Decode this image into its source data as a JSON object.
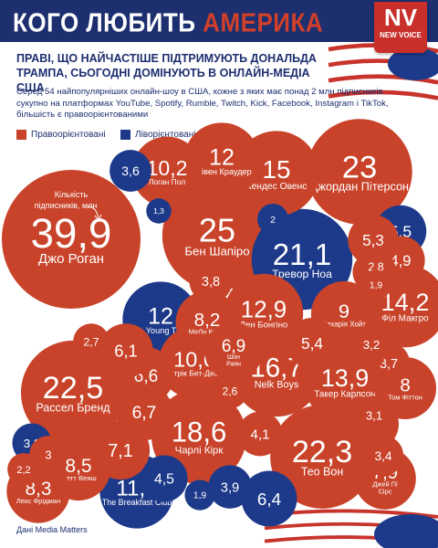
{
  "header": {
    "title_part1": "КОГО ЛЮБИТЬ",
    "title_part2": "АМЕРИКА",
    "logo_text": "NV",
    "logo_subtext": "NEW VOICE"
  },
  "subtitle": "ПРАВІ, ЩО НАЙЧАСТІШЕ ПІДТРИМУЮТЬ ДОНАЛЬДА ТРАМПА, СЬОГОДНІ ДОМІНУЮТЬ В ОНЛАЙН-МЕДІА США",
  "description": "Серед 54 найпопулярніших онлайн-шоу в США, кожне з яких має понад 2 млн підписників сукупно на платформах YouTube, Spotify, Rumble, Twitch, Kick, Facebook, Instagram і TikTok, більшість є правоорієнтованими",
  "legend": {
    "right": "Правоорієнтовані",
    "left": "Ліворієнтовані"
  },
  "colors": {
    "right": "#c8432a",
    "left": "#1d3a8a",
    "header": "#1d2f6f",
    "text": "#1d2f6f"
  },
  "annotation": "Кількість підписників, млн",
  "source": "Дані Media Matters",
  "chart_data": {
    "type": "bubble",
    "unit": "млн підписників",
    "bubbles": [
      {
        "value": 39.9,
        "label": "Джо Роган",
        "value_text": "39,9",
        "group": "right"
      },
      {
        "value": 25,
        "label": "Бен Шапіро",
        "value_text": "25",
        "group": "right"
      },
      {
        "value": 23,
        "label": "Джордан Пітерсон",
        "value_text": "23",
        "group": "right"
      },
      {
        "value": 22.5,
        "label": "Рассел Бренд",
        "value_text": "22,5",
        "group": "right"
      },
      {
        "value": 22.3,
        "label": "Тео Вон",
        "value_text": "22,3",
        "group": "right"
      },
      {
        "value": 21.1,
        "label": "Тревор Ноа",
        "value_text": "21,1",
        "group": "left"
      },
      {
        "value": 18.6,
        "label": "Чарлі Кірк",
        "value_text": "18,6",
        "group": "right"
      },
      {
        "value": 16.7,
        "label": "Nelk Boys",
        "value_text": "16,7",
        "group": "right"
      },
      {
        "value": 15,
        "label": "Кендес Овенс",
        "value_text": "15",
        "group": "right"
      },
      {
        "value": 14.2,
        "label": "Філ Макгро",
        "value_text": "14,2",
        "group": "right"
      },
      {
        "value": 13.9,
        "label": "Такер Карлсон",
        "value_text": "13,9",
        "group": "right"
      },
      {
        "value": 12.9,
        "label": "Ден Бонгіно",
        "value_text": "12,9",
        "group": "right"
      },
      {
        "value": 12,
        "label": "Стівен Краудер",
        "value_text": "12",
        "group": "right"
      },
      {
        "value": 12,
        "label": "The Young Turks",
        "value_text": "12",
        "group": "left"
      },
      {
        "value": 11.4,
        "label": "The Breakfast Club",
        "value_text": "11,4",
        "group": "left"
      },
      {
        "value": 10.6,
        "label": "Патрік Бет-Девід",
        "value_text": "10,6",
        "group": "right"
      },
      {
        "value": 10.2,
        "label": "Логан Пол",
        "value_text": "10,2",
        "group": "right"
      },
      {
        "value": 9,
        "label": "Захарія Хойт",
        "value_text": "9",
        "group": "right"
      },
      {
        "value": 8.5,
        "label": "Метт Веяш",
        "value_text": "8,5",
        "group": "right"
      },
      {
        "value": 8.3,
        "label": "Лекс Фрідман",
        "value_text": "8,3",
        "group": "right"
      },
      {
        "value": 8.2,
        "label": "Меґін Келлі",
        "value_text": "8,2",
        "group": "right"
      },
      {
        "value": 8,
        "label": "Том Фіттон",
        "value_text": "8",
        "group": "right"
      },
      {
        "value": 7.9,
        "label": "Джей Пі Сірс",
        "value_text": "7,9",
        "group": "right"
      },
      {
        "value": 6.9,
        "label": "Шон Раян",
        "value_text": "6,9",
        "group": "right"
      },
      {
        "value": 7.1,
        "label": "",
        "value_text": "7,1",
        "group": "right"
      },
      {
        "value": 6.7,
        "label": "",
        "value_text": "6,7",
        "group": "right"
      },
      {
        "value": 6.6,
        "label": "",
        "value_text": "6,6",
        "group": "right"
      },
      {
        "value": 6.4,
        "label": "",
        "value_text": "6,4",
        "group": "left"
      },
      {
        "value": 6.2,
        "label": "",
        "value_text": "6,2",
        "group": "right"
      },
      {
        "value": 6.1,
        "label": "",
        "value_text": "6,1",
        "group": "right"
      },
      {
        "value": 5.5,
        "label": "",
        "value_text": "5,5",
        "group": "left"
      },
      {
        "value": 5.4,
        "label": "",
        "value_text": "5,4",
        "group": "right"
      },
      {
        "value": 5.3,
        "label": "",
        "value_text": "5,3",
        "group": "right"
      },
      {
        "value": 4.9,
        "label": "",
        "value_text": "4,9",
        "group": "right"
      },
      {
        "value": 4.5,
        "label": "",
        "value_text": "4,5",
        "group": "left"
      },
      {
        "value": 4.1,
        "label": "",
        "value_text": "4,1",
        "group": "right"
      },
      {
        "value": 3.9,
        "label": "",
        "value_text": "3,9",
        "group": "left"
      },
      {
        "value": 3.8,
        "label": "",
        "value_text": "3,8",
        "group": "right"
      },
      {
        "value": 3.7,
        "label": "",
        "value_text": "3,7",
        "group": "right"
      },
      {
        "value": 3.6,
        "label": "",
        "value_text": "3,6",
        "group": "left"
      },
      {
        "value": 3.5,
        "label": "",
        "value_text": "3,5",
        "group": "right"
      },
      {
        "value": 3.4,
        "label": "",
        "value_text": "3,4",
        "group": "right"
      },
      {
        "value": 3.2,
        "label": "",
        "value_text": "3,2",
        "group": "right"
      },
      {
        "value": 3.2,
        "label": "",
        "value_text": "3,2",
        "group": "left"
      },
      {
        "value": 3.1,
        "label": "",
        "value_text": "3,1",
        "group": "right"
      },
      {
        "value": 3,
        "label": "",
        "value_text": "3",
        "group": "right"
      },
      {
        "value": 2.8,
        "label": "",
        "value_text": "2,8",
        "group": "right"
      },
      {
        "value": 2.7,
        "label": "",
        "value_text": "2,7",
        "group": "right"
      },
      {
        "value": 2.6,
        "label": "",
        "value_text": "2,6",
        "group": "right"
      },
      {
        "value": 2.2,
        "label": "",
        "value_text": "2,2",
        "group": "right"
      },
      {
        "value": 2,
        "label": "",
        "value_text": "2",
        "group": "left"
      },
      {
        "value": 1.9,
        "label": "",
        "value_text": "1,9",
        "group": "left"
      },
      {
        "value": 1.9,
        "label": "",
        "value_text": "1,9",
        "group": "right"
      },
      {
        "value": 1.3,
        "label": "",
        "value_text": "1,3",
        "group": "left"
      }
    ]
  }
}
